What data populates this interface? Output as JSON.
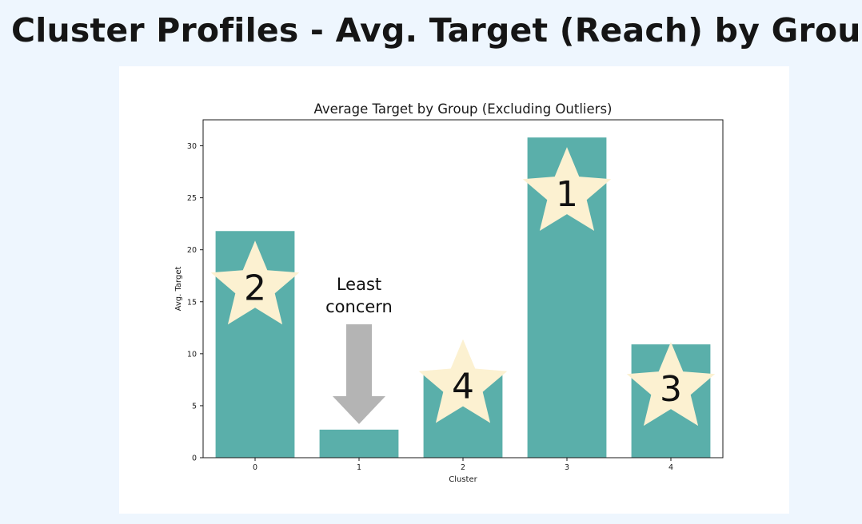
{
  "slide": {
    "title": "Cluster Profiles - Avg. Target (Reach) by Group"
  },
  "chart_data": {
    "type": "bar",
    "title": "Average Target by Group (Excluding Outliers)",
    "xlabel": "Cluster",
    "ylabel": "Avg. Target",
    "categories": [
      "0",
      "1",
      "2",
      "3",
      "4"
    ],
    "values": [
      21.8,
      2.7,
      8.1,
      30.8,
      10.9
    ],
    "ylim": [
      0,
      32.5
    ],
    "yticks": [
      0,
      5,
      10,
      15,
      20,
      25,
      30
    ],
    "grid": false,
    "bar_color": "#5aafaa",
    "annotations": {
      "star_color": "#fcf1d1",
      "stars": [
        {
          "category": "0",
          "rank": "2"
        },
        {
          "category": "2",
          "rank": "4"
        },
        {
          "category": "3",
          "rank": "1"
        },
        {
          "category": "4",
          "rank": "3"
        }
      ],
      "callout": {
        "category": "1",
        "text_lines": [
          "Least",
          "concern"
        ],
        "arrow_color": "#b4b4b4"
      }
    }
  }
}
